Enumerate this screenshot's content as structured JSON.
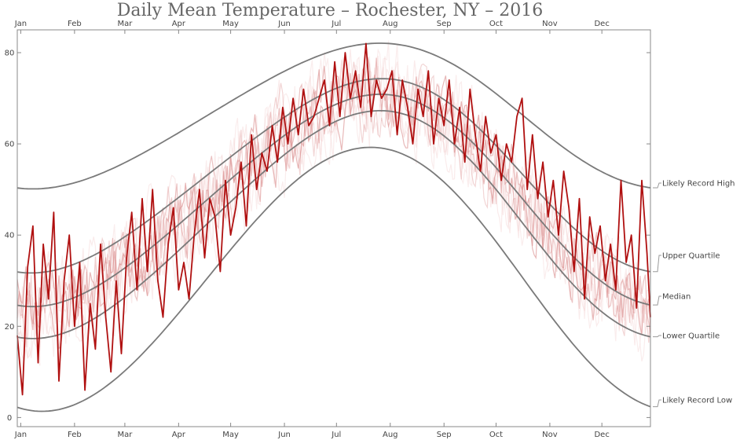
{
  "chart_data": {
    "type": "line",
    "title": "Daily Mean Temperature – Rochester, NY – 2016",
    "xlabel": "",
    "ylabel": "",
    "x_ticks": [
      "Jan",
      "Feb",
      "Mar",
      "Apr",
      "May",
      "Jun",
      "Jul",
      "Aug",
      "Sep",
      "Oct",
      "Nov",
      "Dec"
    ],
    "x_range": [
      1,
      366
    ],
    "y_ticks": [
      0,
      20,
      40,
      60,
      80
    ],
    "ylim": [
      -2,
      85
    ],
    "grid": false,
    "colors": {
      "current_year": "#b01010",
      "recent_years": "#d98888",
      "past_years": "#f2cccc",
      "bands": "#7a7a7a"
    },
    "bands": [
      {
        "name": "Likely Record High",
        "mid": 66.1,
        "amp": 15.8,
        "amp2": 1.2
      },
      {
        "name": "Upper Quartile",
        "mid": 53.0,
        "amp": 21.0,
        "amp2": 1.8
      },
      {
        "name": "Median",
        "mid": 47.6,
        "amp": 23.0,
        "amp2": 1.8
      },
      {
        "name": "Lower Quartile",
        "mid": 42.3,
        "amp": 24.7,
        "amp2": 1.9
      },
      {
        "name": "Likely Record Low",
        "mid": 30.3,
        "amp": 28.9,
        "amp2": 0.8
      }
    ],
    "band_phase_day": 110,
    "series": [
      {
        "name": "2016",
        "day_of_year": [
          1,
          4,
          7,
          10,
          13,
          16,
          19,
          22,
          25,
          28,
          31,
          34,
          37,
          40,
          43,
          46,
          49,
          52,
          55,
          58,
          61,
          64,
          67,
          70,
          73,
          76,
          79,
          82,
          85,
          88,
          91,
          94,
          97,
          100,
          103,
          106,
          109,
          112,
          115,
          118,
          121,
          124,
          127,
          130,
          133,
          136,
          139,
          142,
          145,
          148,
          151,
          154,
          157,
          160,
          163,
          166,
          169,
          172,
          175,
          178,
          181,
          184,
          187,
          190,
          193,
          196,
          199,
          202,
          205,
          208,
          211,
          214,
          217,
          220,
          223,
          226,
          229,
          232,
          235,
          238,
          241,
          244,
          247,
          250,
          253,
          256,
          259,
          262,
          265,
          268,
          271,
          274,
          277,
          280,
          283,
          286,
          289,
          292,
          295,
          298,
          301,
          304,
          307,
          310,
          313,
          316,
          319,
          322,
          325,
          328,
          331,
          334,
          337,
          340,
          343,
          346,
          349,
          352,
          355,
          358,
          361,
          364,
          366
        ],
        "temperature": [
          18,
          5,
          33,
          42,
          12,
          38,
          26,
          45,
          8,
          30,
          40,
          20,
          34,
          6,
          25,
          15,
          38,
          22,
          10,
          30,
          14,
          35,
          45,
          28,
          48,
          32,
          50,
          30,
          22,
          38,
          46,
          28,
          34,
          26,
          40,
          50,
          35,
          48,
          44,
          32,
          52,
          40,
          46,
          56,
          42,
          62,
          50,
          58,
          54,
          64,
          56,
          68,
          60,
          70,
          62,
          72,
          64,
          66,
          70,
          74,
          64,
          78,
          66,
          80,
          70,
          76,
          68,
          82,
          66,
          74,
          70,
          72,
          76,
          62,
          74,
          68,
          60,
          72,
          66,
          76,
          60,
          70,
          64,
          74,
          60,
          68,
          56,
          72,
          62,
          54,
          66,
          58,
          62,
          52,
          60,
          56,
          66,
          70,
          50,
          62,
          48,
          56,
          44,
          52,
          40,
          54,
          46,
          32,
          48,
          26,
          44,
          36,
          42,
          30,
          38,
          28,
          52,
          34,
          40,
          24,
          52,
          36,
          22
        ]
      }
    ]
  }
}
